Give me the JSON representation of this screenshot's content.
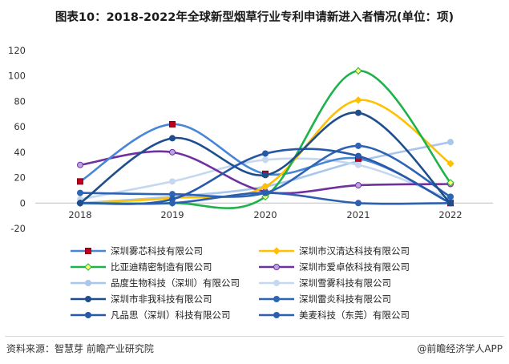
{
  "header": {
    "title": "图表10：2018-2022年全球新型烟草行业专利申请新进入者情况(单位：项)"
  },
  "footer": {
    "source": "资料来源：智慧芽 前瞻产业研究院",
    "brand": "@前瞻经济学人APP"
  },
  "chart_data": {
    "type": "line",
    "x": [
      "2018",
      "2019",
      "2020",
      "2021",
      "2022"
    ],
    "ylim": [
      -20,
      120
    ],
    "yticks": [
      -20,
      0,
      20,
      40,
      60,
      80,
      100,
      120
    ],
    "grid": false,
    "legend_position": "bottom",
    "series": [
      {
        "name": "深圳雾芯科技有限公司",
        "values": [
          17,
          62,
          23,
          35,
          0
        ],
        "color": "#4a86d8",
        "marker": "square",
        "marker_color": "#c0001a"
      },
      {
        "name": "深圳市汉清达科技有限公司",
        "values": [
          0,
          4,
          13,
          81,
          31
        ],
        "color": "#ffc000",
        "marker": "diamond",
        "marker_color": "#ffc000"
      },
      {
        "name": "比亚迪精密制造有限公司",
        "values": [
          0,
          0,
          5,
          104,
          16
        ],
        "color": "#1db24a",
        "marker": "diamond",
        "marker_color": "#ffff66"
      },
      {
        "name": "深圳市爱卓依科技有限公司",
        "values": [
          30,
          40,
          9,
          14,
          15
        ],
        "color": "#7030a0",
        "marker": "circle",
        "marker_color": "#b9a3e0"
      },
      {
        "name": "品度生物科技（深圳）有限公司",
        "values": [
          0,
          5,
          13,
          33,
          48
        ],
        "color": "#a9c6ec",
        "marker": "circle",
        "marker_color": "#a9c6ec"
      },
      {
        "name": "深圳雪雾科技有限公司",
        "values": [
          3,
          17,
          34,
          30,
          3
        ],
        "color": "#c5d8f0",
        "marker": "circle",
        "marker_color": "#c5d8f0"
      },
      {
        "name": "深圳市非我科技有限公司",
        "values": [
          0,
          51,
          22,
          71,
          0
        ],
        "color": "#1f4e8c",
        "marker": "circle",
        "marker_color": "#1f4e8c"
      },
      {
        "name": "深圳雷炎科技有限公司",
        "values": [
          8,
          7,
          8,
          45,
          5
        ],
        "color": "#2e64b5",
        "marker": "circle",
        "marker_color": "#2e64b5"
      },
      {
        "name": "凡品思（深圳）科技有限公司",
        "values": [
          0,
          3,
          39,
          37,
          0
        ],
        "color": "#2659a8",
        "marker": "circle",
        "marker_color": "#2659a8"
      },
      {
        "name": "美麦科技（东莞）有限公司",
        "values": [
          0,
          0,
          8,
          0,
          0
        ],
        "color": "#2c5fb0",
        "marker": "circle",
        "marker_color": "#2c5fb0"
      }
    ]
  }
}
